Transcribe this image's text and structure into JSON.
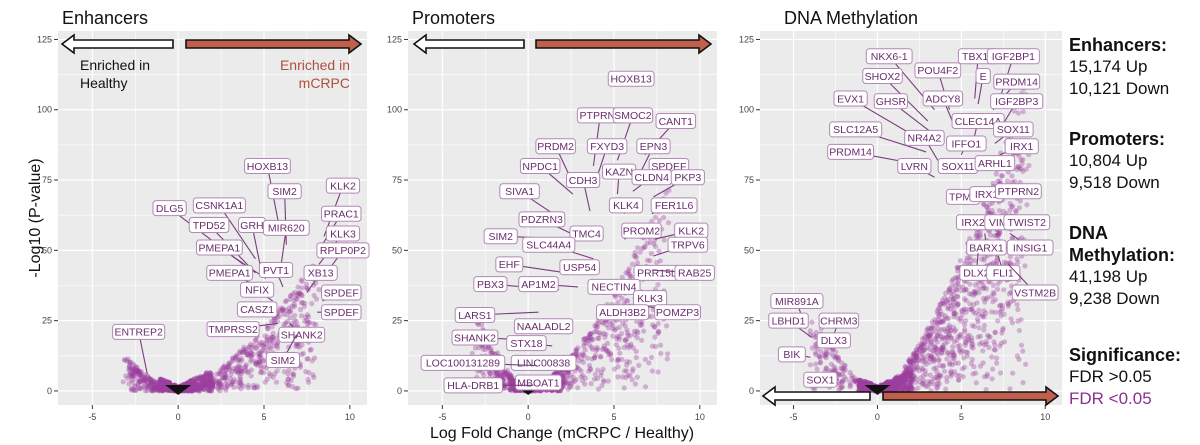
{
  "colors": {
    "significant": "#9b3f9e",
    "nonsignificant": "#111111",
    "enriched_healthy_arrow": "#ffffff",
    "enriched_mcrpc_arrow": "#c0604c",
    "label_border": "#b18ab5",
    "label_text": "#6a2c6e",
    "panel_bg": "#ebebeb",
    "mcrpc_text": "#b0503e",
    "fdr_low_text": "#8b2f8f"
  },
  "shared": {
    "ylabel": "-Log10 (P-value)",
    "xlabel": "Log Fold Change (mCRPC / Healthy)",
    "xlim": [
      -7,
      11
    ],
    "ylim": [
      -5,
      128
    ],
    "x_ticks": [
      "-5",
      "0",
      "5",
      "10"
    ],
    "y_ticks": [
      "0",
      "25",
      "50",
      "75",
      "100",
      "125"
    ],
    "enriched_healthy": [
      "Enriched in",
      "Healthy"
    ],
    "enriched_mcrpc": [
      "Enriched in",
      "mCRPC"
    ]
  },
  "sidebar": {
    "enhancers_title": "Enhancers:",
    "enhancers_up": "15,174 Up",
    "enhancers_down": "10,121 Down",
    "promoters_title": "Promoters:",
    "promoters_up": "10,804 Up",
    "promoters_down": "9,518 Down",
    "methylation_title_1": "DNA",
    "methylation_title_2": "Methylation:",
    "methylation_up": "41,198 Up",
    "methylation_down": "9,238 Down",
    "significance_title": "Significance:",
    "fdr_high": "FDR >0.05",
    "fdr_low": "FDR <0.05"
  },
  "chart_data": [
    {
      "type": "scatter",
      "title": "Enhancers",
      "ylabel": "-Log10 (P-value)",
      "xlim": [
        -7,
        11
      ],
      "ylim": [
        -5,
        128
      ],
      "cloud": {
        "left_max": [
          -3,
          12
        ],
        "right_max": [
          8,
          47
        ]
      },
      "labels": [
        {
          "text": "HOXB13",
          "x": 5.9,
          "y": 58,
          "lx": 5.2,
          "ly": 80
        },
        {
          "text": "KLK2",
          "x": 8.5,
          "y": 55,
          "lx": 9.6,
          "ly": 73
        },
        {
          "text": "SIM2",
          "x": 6.3,
          "y": 52,
          "lx": 6.2,
          "ly": 71
        },
        {
          "text": "PRAC1",
          "x": 8.2,
          "y": 50,
          "lx": 9.5,
          "ly": 63
        },
        {
          "text": "CSNK1A1",
          "x": 4.5,
          "y": 47,
          "lx": 2.4,
          "ly": 66
        },
        {
          "text": "DLG5",
          "x": 3.8,
          "y": 45,
          "lx": -0.5,
          "ly": 65
        },
        {
          "text": "GRH",
          "x": 4.8,
          "y": 44,
          "lx": 4.3,
          "ly": 59
        },
        {
          "text": "MIR620",
          "x": 6.0,
          "y": 45,
          "lx": 6.3,
          "ly": 58
        },
        {
          "text": "KLK3",
          "x": 8.2,
          "y": 45,
          "lx": 9.6,
          "ly": 56
        },
        {
          "text": "TPD52",
          "x": 4.5,
          "y": 42,
          "lx": 1.8,
          "ly": 59
        },
        {
          "text": "PMEPA1",
          "x": 5.1,
          "y": 40,
          "lx": 2.4,
          "ly": 51
        },
        {
          "text": "RPLP0P2",
          "x": 8.4,
          "y": 40,
          "lx": 9.6,
          "ly": 50
        },
        {
          "text": "PMEPA1",
          "x": 5.4,
          "y": 35,
          "lx": 3.0,
          "ly": 42
        },
        {
          "text": "PVT1",
          "x": 6.1,
          "y": 37,
          "lx": 5.7,
          "ly": 43
        },
        {
          "text": "XB13",
          "x": 7.5,
          "y": 35,
          "lx": 8.3,
          "ly": 42
        },
        {
          "text": "NFIX",
          "x": 5.5,
          "y": 32,
          "lx": 4.6,
          "ly": 36
        },
        {
          "text": "SPDEF",
          "x": 8.4,
          "y": 32,
          "lx": 9.5,
          "ly": 35
        },
        {
          "text": "CASZ1",
          "x": 5.4,
          "y": 27,
          "lx": 4.6,
          "ly": 29
        },
        {
          "text": "SPDEF",
          "x": 8.1,
          "y": 28,
          "lx": 9.5,
          "ly": 28
        },
        {
          "text": "TMPRSS2",
          "x": 5.8,
          "y": 24,
          "lx": 3.2,
          "ly": 22
        },
        {
          "text": "SHANK2",
          "x": 6.5,
          "y": 24,
          "lx": 7.2,
          "ly": 20
        },
        {
          "text": "ENTREP2",
          "x": -1.8,
          "y": 6,
          "lx": -2.3,
          "ly": 21
        },
        {
          "text": "SIM2",
          "x": 6.9,
          "y": 20,
          "lx": 6.1,
          "ly": 11
        }
      ]
    },
    {
      "type": "scatter",
      "title": "Promoters",
      "xlim": [
        -7,
        11
      ],
      "ylim": [
        -5,
        128
      ],
      "cloud": {
        "left_max": [
          -3,
          32
        ],
        "right_max": [
          8,
          72
        ]
      },
      "labels": [
        {
          "text": "HOXB13",
          "x": 5.8,
          "y": 111,
          "lx": 6.0,
          "ly": 111
        },
        {
          "text": "PTPRN2",
          "x": 3.8,
          "y": 80,
          "lx": 4.2,
          "ly": 98
        },
        {
          "text": "SMOC2",
          "x": 5.2,
          "y": 82,
          "lx": 6.1,
          "ly": 98
        },
        {
          "text": "CANT1",
          "x": 6.8,
          "y": 84,
          "lx": 8.6,
          "ly": 96
        },
        {
          "text": "PRDM2",
          "x": 2.6,
          "y": 74,
          "lx": 1.6,
          "ly": 87
        },
        {
          "text": "FXYD3",
          "x": 3.9,
          "y": 74,
          "lx": 4.6,
          "ly": 87
        },
        {
          "text": "EPN3",
          "x": 6.4,
          "y": 76,
          "lx": 7.3,
          "ly": 87
        },
        {
          "text": "SPDEF",
          "x": 6.8,
          "y": 74,
          "lx": 8.2,
          "ly": 80
        },
        {
          "text": "NPDC1",
          "x": 2.6,
          "y": 70,
          "lx": 0.7,
          "ly": 80
        },
        {
          "text": "KAZN",
          "x": 5.2,
          "y": 70,
          "lx": 5.3,
          "ly": 78
        },
        {
          "text": "CLDN4",
          "x": 6.1,
          "y": 71,
          "lx": 7.2,
          "ly": 76
        },
        {
          "text": "PKP3",
          "x": 7.3,
          "y": 69,
          "lx": 9.3,
          "ly": 76
        },
        {
          "text": "CDH3",
          "x": 3.6,
          "y": 64,
          "lx": 3.2,
          "ly": 75
        },
        {
          "text": "SIVA1",
          "x": 1.7,
          "y": 62,
          "lx": -0.5,
          "ly": 71
        },
        {
          "text": "KLK4",
          "x": 5.6,
          "y": 63,
          "lx": 5.7,
          "ly": 66
        },
        {
          "text": "FER1L6",
          "x": 7.2,
          "y": 63,
          "lx": 8.5,
          "ly": 66
        },
        {
          "text": "PDZRN3",
          "x": 2.5,
          "y": 56,
          "lx": 0.8,
          "ly": 61
        },
        {
          "text": "SIM2",
          "x": 2.8,
          "y": 54,
          "lx": -1.6,
          "ly": 55
        },
        {
          "text": "TMC4",
          "x": 4.4,
          "y": 55,
          "lx": 3.4,
          "ly": 56
        },
        {
          "text": "PROM2",
          "x": 5.6,
          "y": 54,
          "lx": 6.6,
          "ly": 57
        },
        {
          "text": "KLK2",
          "x": 7.4,
          "y": 54,
          "lx": 9.5,
          "ly": 57
        },
        {
          "text": "SLC44A4",
          "x": 3.8,
          "y": 47,
          "lx": 1.2,
          "ly": 52
        },
        {
          "text": "TRPV6",
          "x": 7.3,
          "y": 48,
          "lx": 9.3,
          "ly": 52
        },
        {
          "text": "EHF",
          "x": 2.2,
          "y": 42,
          "lx": -1.1,
          "ly": 45
        },
        {
          "text": "USP54",
          "x": 3.8,
          "y": 42,
          "lx": 3.0,
          "ly": 44
        },
        {
          "text": "PBX3",
          "x": 1.8,
          "y": 36,
          "lx": -2.2,
          "ly": 38
        },
        {
          "text": "AP1M2",
          "x": 2.9,
          "y": 37,
          "lx": 0.6,
          "ly": 38
        },
        {
          "text": "PRR15L",
          "x": 6.3,
          "y": 42,
          "lx": 7.5,
          "ly": 42
        },
        {
          "text": "RAB25",
          "x": 7.2,
          "y": 43,
          "lx": 9.7,
          "ly": 42
        },
        {
          "text": "NECTIN4",
          "x": 5.8,
          "y": 36,
          "lx": 5.0,
          "ly": 37
        },
        {
          "text": "KLK3",
          "x": 6.6,
          "y": 36,
          "lx": 7.1,
          "ly": 33
        },
        {
          "text": "ALDH3B2",
          "x": 5.9,
          "y": 31,
          "lx": 5.5,
          "ly": 28
        },
        {
          "text": "POMZP3",
          "x": 7.0,
          "y": 30,
          "lx": 8.7,
          "ly": 28
        },
        {
          "text": "LARS1",
          "x": 0.6,
          "y": 28,
          "lx": -3.1,
          "ly": 27
        },
        {
          "text": "NAALADL2",
          "x": 1.6,
          "y": 23,
          "lx": 0.9,
          "ly": 23
        },
        {
          "text": "SHANK2",
          "x": 0.6,
          "y": 18,
          "lx": -3.1,
          "ly": 19
        },
        {
          "text": "STX18",
          "x": 1.4,
          "y": 16,
          "lx": -0.1,
          "ly": 17
        },
        {
          "text": "LINC00838",
          "x": 1.3,
          "y": 11,
          "lx": 0.9,
          "ly": 10
        },
        {
          "text": "LOC100131289",
          "x": 0.5,
          "y": 9,
          "lx": -3.8,
          "ly": 10
        },
        {
          "text": "MBOAT1",
          "x": 1.0,
          "y": 4,
          "lx": 0.6,
          "ly": 3
        },
        {
          "text": "HLA-DRB1",
          "x": 0.3,
          "y": 2,
          "lx": -3.2,
          "ly": 2
        }
      ]
    },
    {
      "type": "scatter",
      "title": "DNA Methylation",
      "xlim": [
        -7,
        11
      ],
      "ylim": [
        -5,
        128
      ],
      "cloud": {
        "left_max": [
          -4,
          30
        ],
        "right_max": [
          8.8,
          112
        ]
      },
      "labels": [
        {
          "text": "NKX6-1",
          "x": 3.4,
          "y": 100,
          "lx": 0.7,
          "ly": 119
        },
        {
          "text": "TBX15",
          "x": 5.8,
          "y": 104,
          "lx": 6.0,
          "ly": 119
        },
        {
          "text": "IGF2BP1",
          "x": 7.3,
          "y": 104,
          "lx": 8.1,
          "ly": 119
        },
        {
          "text": "SHOX2",
          "x": 3.0,
          "y": 96,
          "lx": 0.3,
          "ly": 112
        },
        {
          "text": "POU4F2",
          "x": 4.3,
          "y": 100,
          "lx": 3.6,
          "ly": 114
        },
        {
          "text": "E",
          "x": 6.0,
          "y": 102,
          "lx": 6.3,
          "ly": 112
        },
        {
          "text": "PRDM14",
          "x": 6.9,
          "y": 100,
          "lx": 8.3,
          "ly": 110
        },
        {
          "text": "EVX1",
          "x": 2.4,
          "y": 90,
          "lx": -1.6,
          "ly": 104
        },
        {
          "text": "GHSR",
          "x": 3.2,
          "y": 92,
          "lx": 0.8,
          "ly": 103
        },
        {
          "text": "ADCY8",
          "x": 4.6,
          "y": 94,
          "lx": 3.9,
          "ly": 104
        },
        {
          "text": "IGF2BP3",
          "x": 7.4,
          "y": 94,
          "lx": 8.3,
          "ly": 103
        },
        {
          "text": "SLC12A5",
          "x": 2.9,
          "y": 85,
          "lx": -1.3,
          "ly": 93
        },
        {
          "text": "NR4A2",
          "x": 3.6,
          "y": 82,
          "lx": 2.8,
          "ly": 90
        },
        {
          "text": "CLEC14A",
          "x": 5.6,
          "y": 86,
          "lx": 6.0,
          "ly": 96
        },
        {
          "text": "SOX11",
          "x": 7.0,
          "y": 88,
          "lx": 8.1,
          "ly": 93
        },
        {
          "text": "IFFO1",
          "x": 5.0,
          "y": 84,
          "lx": 5.3,
          "ly": 88
        },
        {
          "text": "IRX1",
          "x": 7.3,
          "y": 84,
          "lx": 8.6,
          "ly": 87
        },
        {
          "text": "PRDM14",
          "x": 3.0,
          "y": 80,
          "lx": -1.6,
          "ly": 85
        },
        {
          "text": "LVRN",
          "x": 3.4,
          "y": 76,
          "lx": 2.2,
          "ly": 80
        },
        {
          "text": "SOX11",
          "x": 4.6,
          "y": 78,
          "lx": 4.8,
          "ly": 80
        },
        {
          "text": "ARHL1",
          "x": 6.5,
          "y": 80,
          "lx": 7.0,
          "ly": 81
        },
        {
          "text": "TPM4",
          "x": 5.4,
          "y": 69,
          "lx": 5.1,
          "ly": 69
        },
        {
          "text": "IRX1",
          "x": 6.6,
          "y": 71,
          "lx": 6.5,
          "ly": 70
        },
        {
          "text": "PTPRN2",
          "x": 7.4,
          "y": 73,
          "lx": 8.4,
          "ly": 71
        },
        {
          "text": "IRX2",
          "x": 6.0,
          "y": 62,
          "lx": 5.7,
          "ly": 60
        },
        {
          "text": "VIM",
          "x": 7.0,
          "y": 62,
          "lx": 7.2,
          "ly": 60
        },
        {
          "text": "TWIST2",
          "x": 7.9,
          "y": 63,
          "lx": 8.9,
          "ly": 60
        },
        {
          "text": "BARX1",
          "x": 6.4,
          "y": 56,
          "lx": 6.5,
          "ly": 51
        },
        {
          "text": "INSIG1",
          "x": 7.9,
          "y": 56,
          "lx": 9.1,
          "ly": 51
        },
        {
          "text": "DLX2",
          "x": 6.0,
          "y": 49,
          "lx": 5.9,
          "ly": 42
        },
        {
          "text": "FLI1",
          "x": 7.2,
          "y": 48,
          "lx": 7.5,
          "ly": 42
        },
        {
          "text": "VSTM2B",
          "x": 7.8,
          "y": 45,
          "lx": 9.4,
          "ly": 35
        },
        {
          "text": "MIR891A",
          "x": -4.3,
          "y": 22,
          "lx": -4.8,
          "ly": 32
        },
        {
          "text": "LBHD1",
          "x": -3.9,
          "y": 19,
          "lx": -5.3,
          "ly": 25
        },
        {
          "text": "CHRM3",
          "x": -2.6,
          "y": 20,
          "lx": -2.3,
          "ly": 25
        },
        {
          "text": "DLX3",
          "x": -2.4,
          "y": 17,
          "lx": -2.6,
          "ly": 18
        },
        {
          "text": "BIK",
          "x": -4.0,
          "y": 12,
          "lx": -5.1,
          "ly": 13
        },
        {
          "text": "SOX1",
          "x": -2.3,
          "y": 4,
          "lx": -3.4,
          "ly": 4
        }
      ]
    }
  ]
}
